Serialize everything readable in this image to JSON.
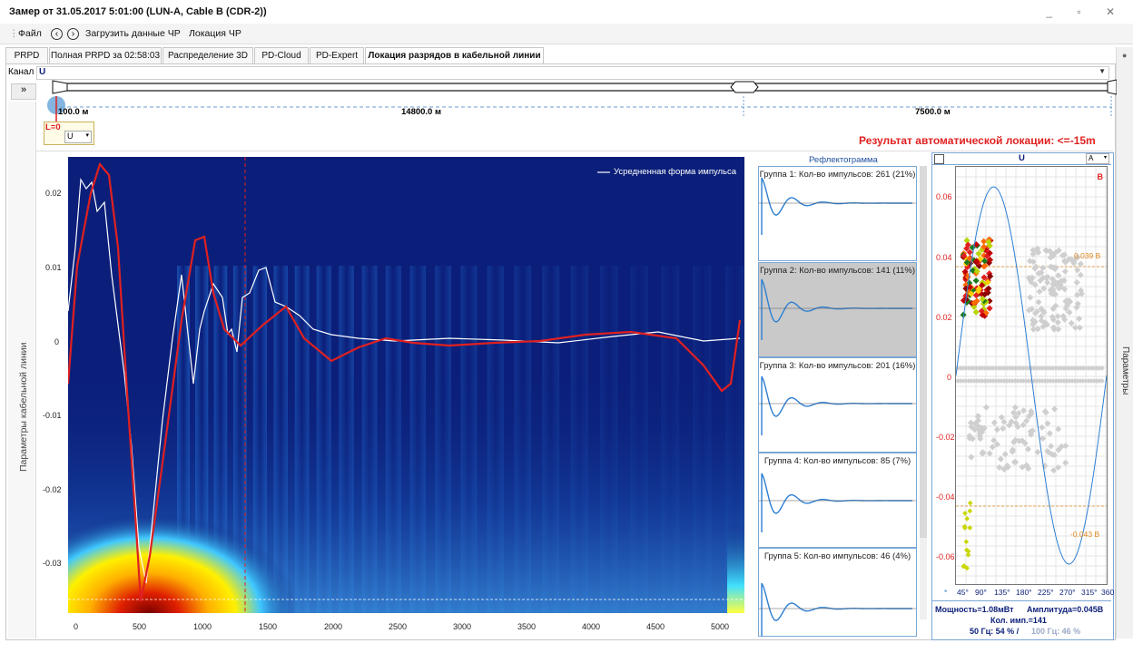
{
  "window": {
    "title": "Замер от 31.05.2017 5:01:00 (LUN-A, Cable B (CDR-2))",
    "buttons": "_ ▫ ✕"
  },
  "menu": {
    "file": "Файл",
    "load": "Загрузить данные ЧР",
    "location": "Локация ЧР"
  },
  "tabs": [
    "PRPD",
    "Полная PRPD за 02:58:03",
    "Распределение 3D",
    "PD-Cloud",
    "PD-Expert",
    "Локация разрядов в кабельной линии"
  ],
  "channel": {
    "label": "Канал",
    "value": "U"
  },
  "cable": {
    "left_label": "100.0 м",
    "mid_label": "14800.0 м",
    "right_label": "7500.0 м",
    "marker": "L=0",
    "small_select": "U",
    "auto_result": "Результат автоматической локации: <=-15m"
  },
  "side_label": "Параметры кабельной линии",
  "expand_btn": "»",
  "main_chart": {
    "legend": "Усредненная форма импульса",
    "y_ticks": [
      "0.02",
      "0.01",
      "0",
      "-0.01",
      "-0.02",
      "-0.03"
    ],
    "x_ticks": [
      "0",
      "500",
      "1000",
      "1500",
      "2000",
      "2500",
      "3000",
      "3500",
      "4000",
      "4500",
      "5000"
    ]
  },
  "reflectogram": {
    "title": "Рефлектограмма",
    "groups": [
      "Группа 1: Кол-во импульсов: 261 (21%)",
      "Группа 2: Кол-во импульсов: 141 (11%)",
      "Группа 3: Кол-во импульсов: 201 (16%)",
      "Группа 4: Кол-во импульсов: 85 (7%)",
      "Группа 5: Кол-во импульсов: 46 (4%)"
    ]
  },
  "prpd": {
    "channel": "U",
    "scale": "A",
    "corner": "B",
    "y_ticks": [
      "0.06",
      "0.04",
      "0.02",
      "0",
      "-0.02",
      "-0.04",
      "-0.06"
    ],
    "x_ticks": [
      "45°",
      "90°",
      "135°",
      "180°",
      "225°",
      "270°",
      "315°",
      "360"
    ],
    "threshold_pos": "0.039 В",
    "threshold_neg": "-0.043 В",
    "power": "Мощность=1.08мВт",
    "amplitude": "Амплитуда=0.045В",
    "count": "Кол. имп.=141",
    "freq50": "50 Гц: 54 % /",
    "freq100": "100 Гц: 46 %"
  },
  "right_strip_label": "Параметры",
  "colors": {
    "red": "#e02020",
    "blue": "#2d7fd3",
    "navy": "#0b1f7a"
  }
}
